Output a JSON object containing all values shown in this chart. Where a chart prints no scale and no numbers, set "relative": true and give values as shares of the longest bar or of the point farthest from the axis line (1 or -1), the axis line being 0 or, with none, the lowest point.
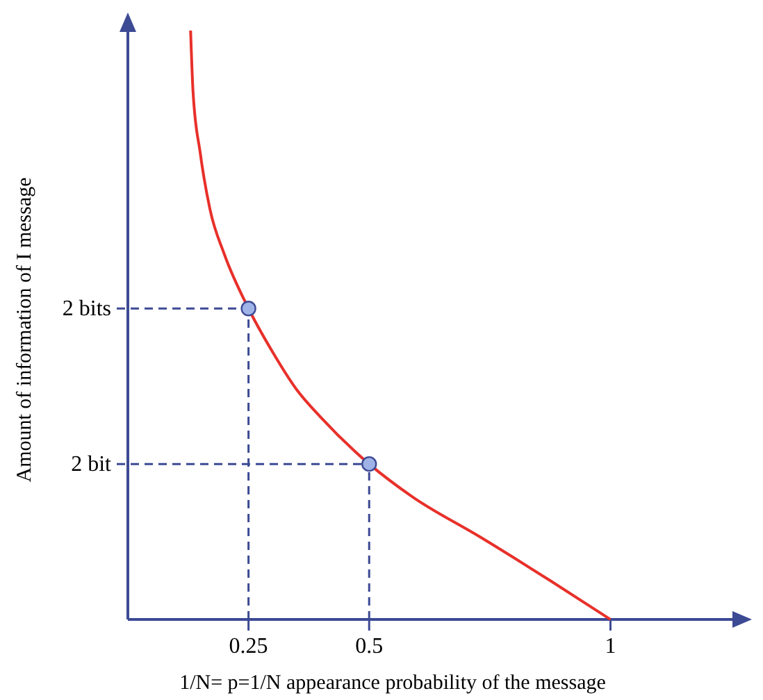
{
  "chart_data": {
    "type": "line",
    "relative": true,
    "xlabel": "1/N= p=1/N  appearance probability of the message",
    "ylabel": "Amount of information of I message",
    "xlim": [
      0,
      1.27
    ],
    "xticks": [
      0.25,
      0.5,
      1
    ],
    "grid": false,
    "legend": false,
    "ref_lines": [
      {
        "axis": "x",
        "value": 0.25,
        "line_style": "dashed",
        "color": "#3d4a94"
      },
      {
        "axis": "x",
        "value": 0.5,
        "line_style": "dashed",
        "color": "#3d4a94"
      },
      {
        "axis": "y",
        "value": 0.528,
        "label": "2 bits",
        "line_style": "dashed",
        "color": "#3d4a94"
      },
      {
        "axis": "y",
        "value": 0.264,
        "label": "2 bit",
        "line_style": "dashed",
        "color": "#3d4a94"
      }
    ],
    "series": [
      {
        "color": "#e8302a",
        "x": [
          0.13,
          0.135,
          0.15,
          0.17,
          0.2,
          0.25,
          0.3,
          0.35,
          0.4,
          0.5,
          0.59,
          0.73,
          0.875,
          1
        ],
        "values": [
          1,
          0.897,
          0.792,
          0.697,
          0.62,
          0.528,
          0.454,
          0.39,
          0.343,
          0.264,
          0.208,
          0.14,
          0.066,
          0
        ]
      },
      {
        "type": "scatter",
        "color": "#9fb3e6",
        "marker": "circle",
        "x": [
          0.25,
          0.5
        ],
        "values": [
          0.528,
          0.264
        ]
      }
    ]
  }
}
